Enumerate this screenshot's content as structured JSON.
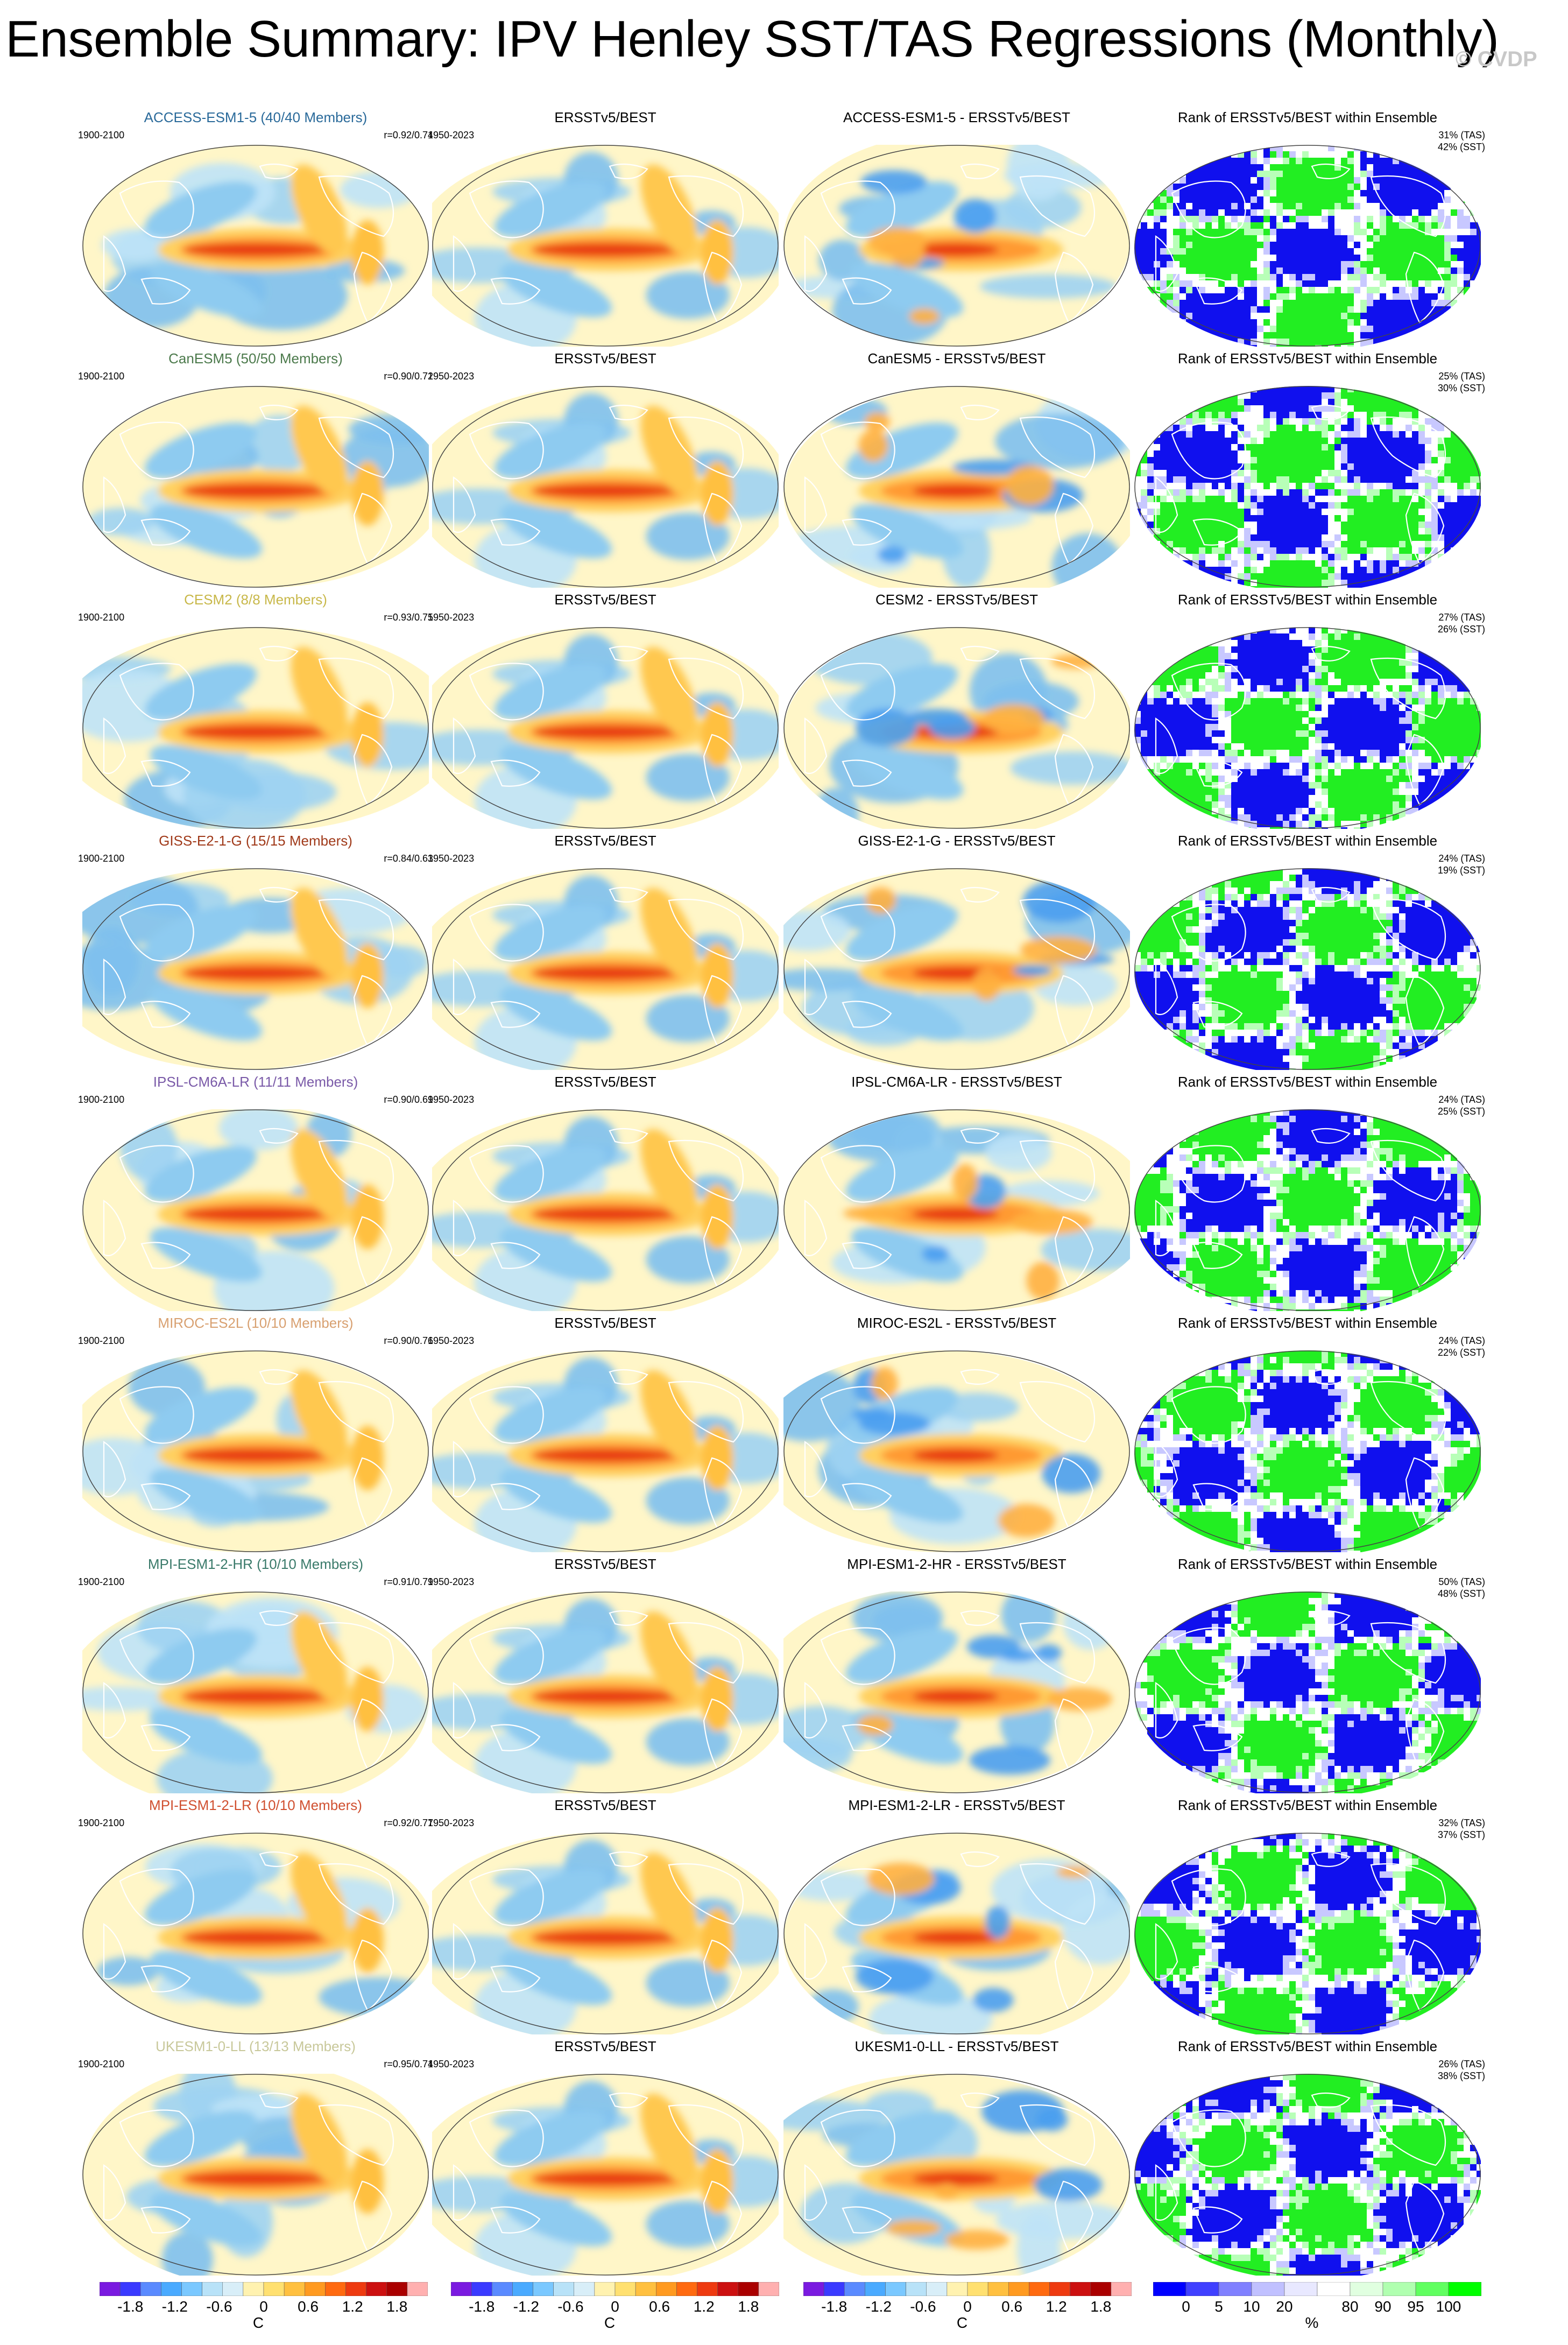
{
  "title": "Ensemble Summary: IPV Henley SST/TAS Regressions (Monthly)",
  "watermark": "© CVDP",
  "rows": [
    {
      "model": "ACCESS-ESM1-5 (40/40 Members)",
      "model_color": "#2a6a9a",
      "corr": "r=0.92/0.74",
      "diff_title": "ACCESS-ESM1-5 - ERSSTv5/BEST",
      "rank_tas": "31% (TAS)",
      "rank_sst": "42% (SST)"
    },
    {
      "model": "CanESM5 (50/50 Members)",
      "model_color": "#4c7a4c",
      "corr": "r=0.90/0.72",
      "diff_title": "CanESM5 - ERSSTv5/BEST",
      "rank_tas": "25% (TAS)",
      "rank_sst": "30% (SST)"
    },
    {
      "model": "CESM2 (8/8 Members)",
      "model_color": "#c8b84a",
      "corr": "r=0.93/0.75",
      "diff_title": "CESM2 - ERSSTv5/BEST",
      "rank_tas": "27% (TAS)",
      "rank_sst": "26% (SST)"
    },
    {
      "model": "GISS-E2-1-G (15/15 Members)",
      "model_color": "#a03a1a",
      "corr": "r=0.84/0.63",
      "diff_title": "GISS-E2-1-G - ERSSTv5/BEST",
      "rank_tas": "24% (TAS)",
      "rank_sst": "19% (SST)"
    },
    {
      "model": "IPSL-CM6A-LR (11/11 Members)",
      "model_color": "#7a5aa8",
      "corr": "r=0.90/0.69",
      "diff_title": "IPSL-CM6A-LR - ERSSTv5/BEST",
      "rank_tas": "24% (TAS)",
      "rank_sst": "25% (SST)"
    },
    {
      "model": "MIROC-ES2L (10/10 Members)",
      "model_color": "#d8a070",
      "corr": "r=0.90/0.76",
      "diff_title": "MIROC-ES2L - ERSSTv5/BEST",
      "rank_tas": "24% (TAS)",
      "rank_sst": "22% (SST)"
    },
    {
      "model": "MPI-ESM1-2-HR (10/10 Members)",
      "model_color": "#3a7a6a",
      "corr": "r=0.91/0.79",
      "diff_title": "MPI-ESM1-2-HR - ERSSTv5/BEST",
      "rank_tas": "50% (TAS)",
      "rank_sst": "48% (SST)"
    },
    {
      "model": "MPI-ESM1-2-LR (10/10 Members)",
      "model_color": "#d05030",
      "corr": "r=0.92/0.77",
      "diff_title": "MPI-ESM1-2-LR - ERSSTv5/BEST",
      "rank_tas": "32% (TAS)",
      "rank_sst": "37% (SST)"
    },
    {
      "model": "UKESM1-0-LL (13/13 Members)",
      "model_color": "#c8c89a",
      "corr": "r=0.95/0.74",
      "diff_title": "UKESM1-0-LL - ERSSTv5/BEST",
      "rank_tas": "26% (TAS)",
      "rank_sst": "38% (SST)"
    }
  ],
  "model_period": "1900-2100",
  "obs_period": "1950-2023",
  "obs_title": "ERSSTv5/BEST",
  "rank_title": "Rank of ERSSTv5/BEST within Ensemble",
  "colorbars": {
    "temp_labels": [
      "-1.8",
      "-1.2",
      "-0.6",
      "0",
      "0.6",
      "1.2",
      "1.8"
    ],
    "temp_unit": "C",
    "rank_labels": [
      "0",
      "5",
      "10",
      "20",
      "80",
      "90",
      "95",
      "100"
    ],
    "rank_unit": "%"
  },
  "colors": {
    "temp_scale": [
      "#7a1ae0",
      "#3a3aff",
      "#5a8aff",
      "#4aaaff",
      "#7ac8ff",
      "#b8e2f8",
      "#d8eef8",
      "#fff2b0",
      "#ffe070",
      "#ffc040",
      "#ff9a20",
      "#ff6a10",
      "#ee3a10",
      "#cc1010",
      "#aa0000",
      "#ffb0b0"
    ],
    "rank_scale": [
      "#0000ff",
      "#4040ff",
      "#8080ff",
      "#c0c0ff",
      "#e8e8ff",
      "#ffffff",
      "#e0ffe0",
      "#b0ffb0",
      "#60ff60",
      "#00ff00"
    ]
  }
}
